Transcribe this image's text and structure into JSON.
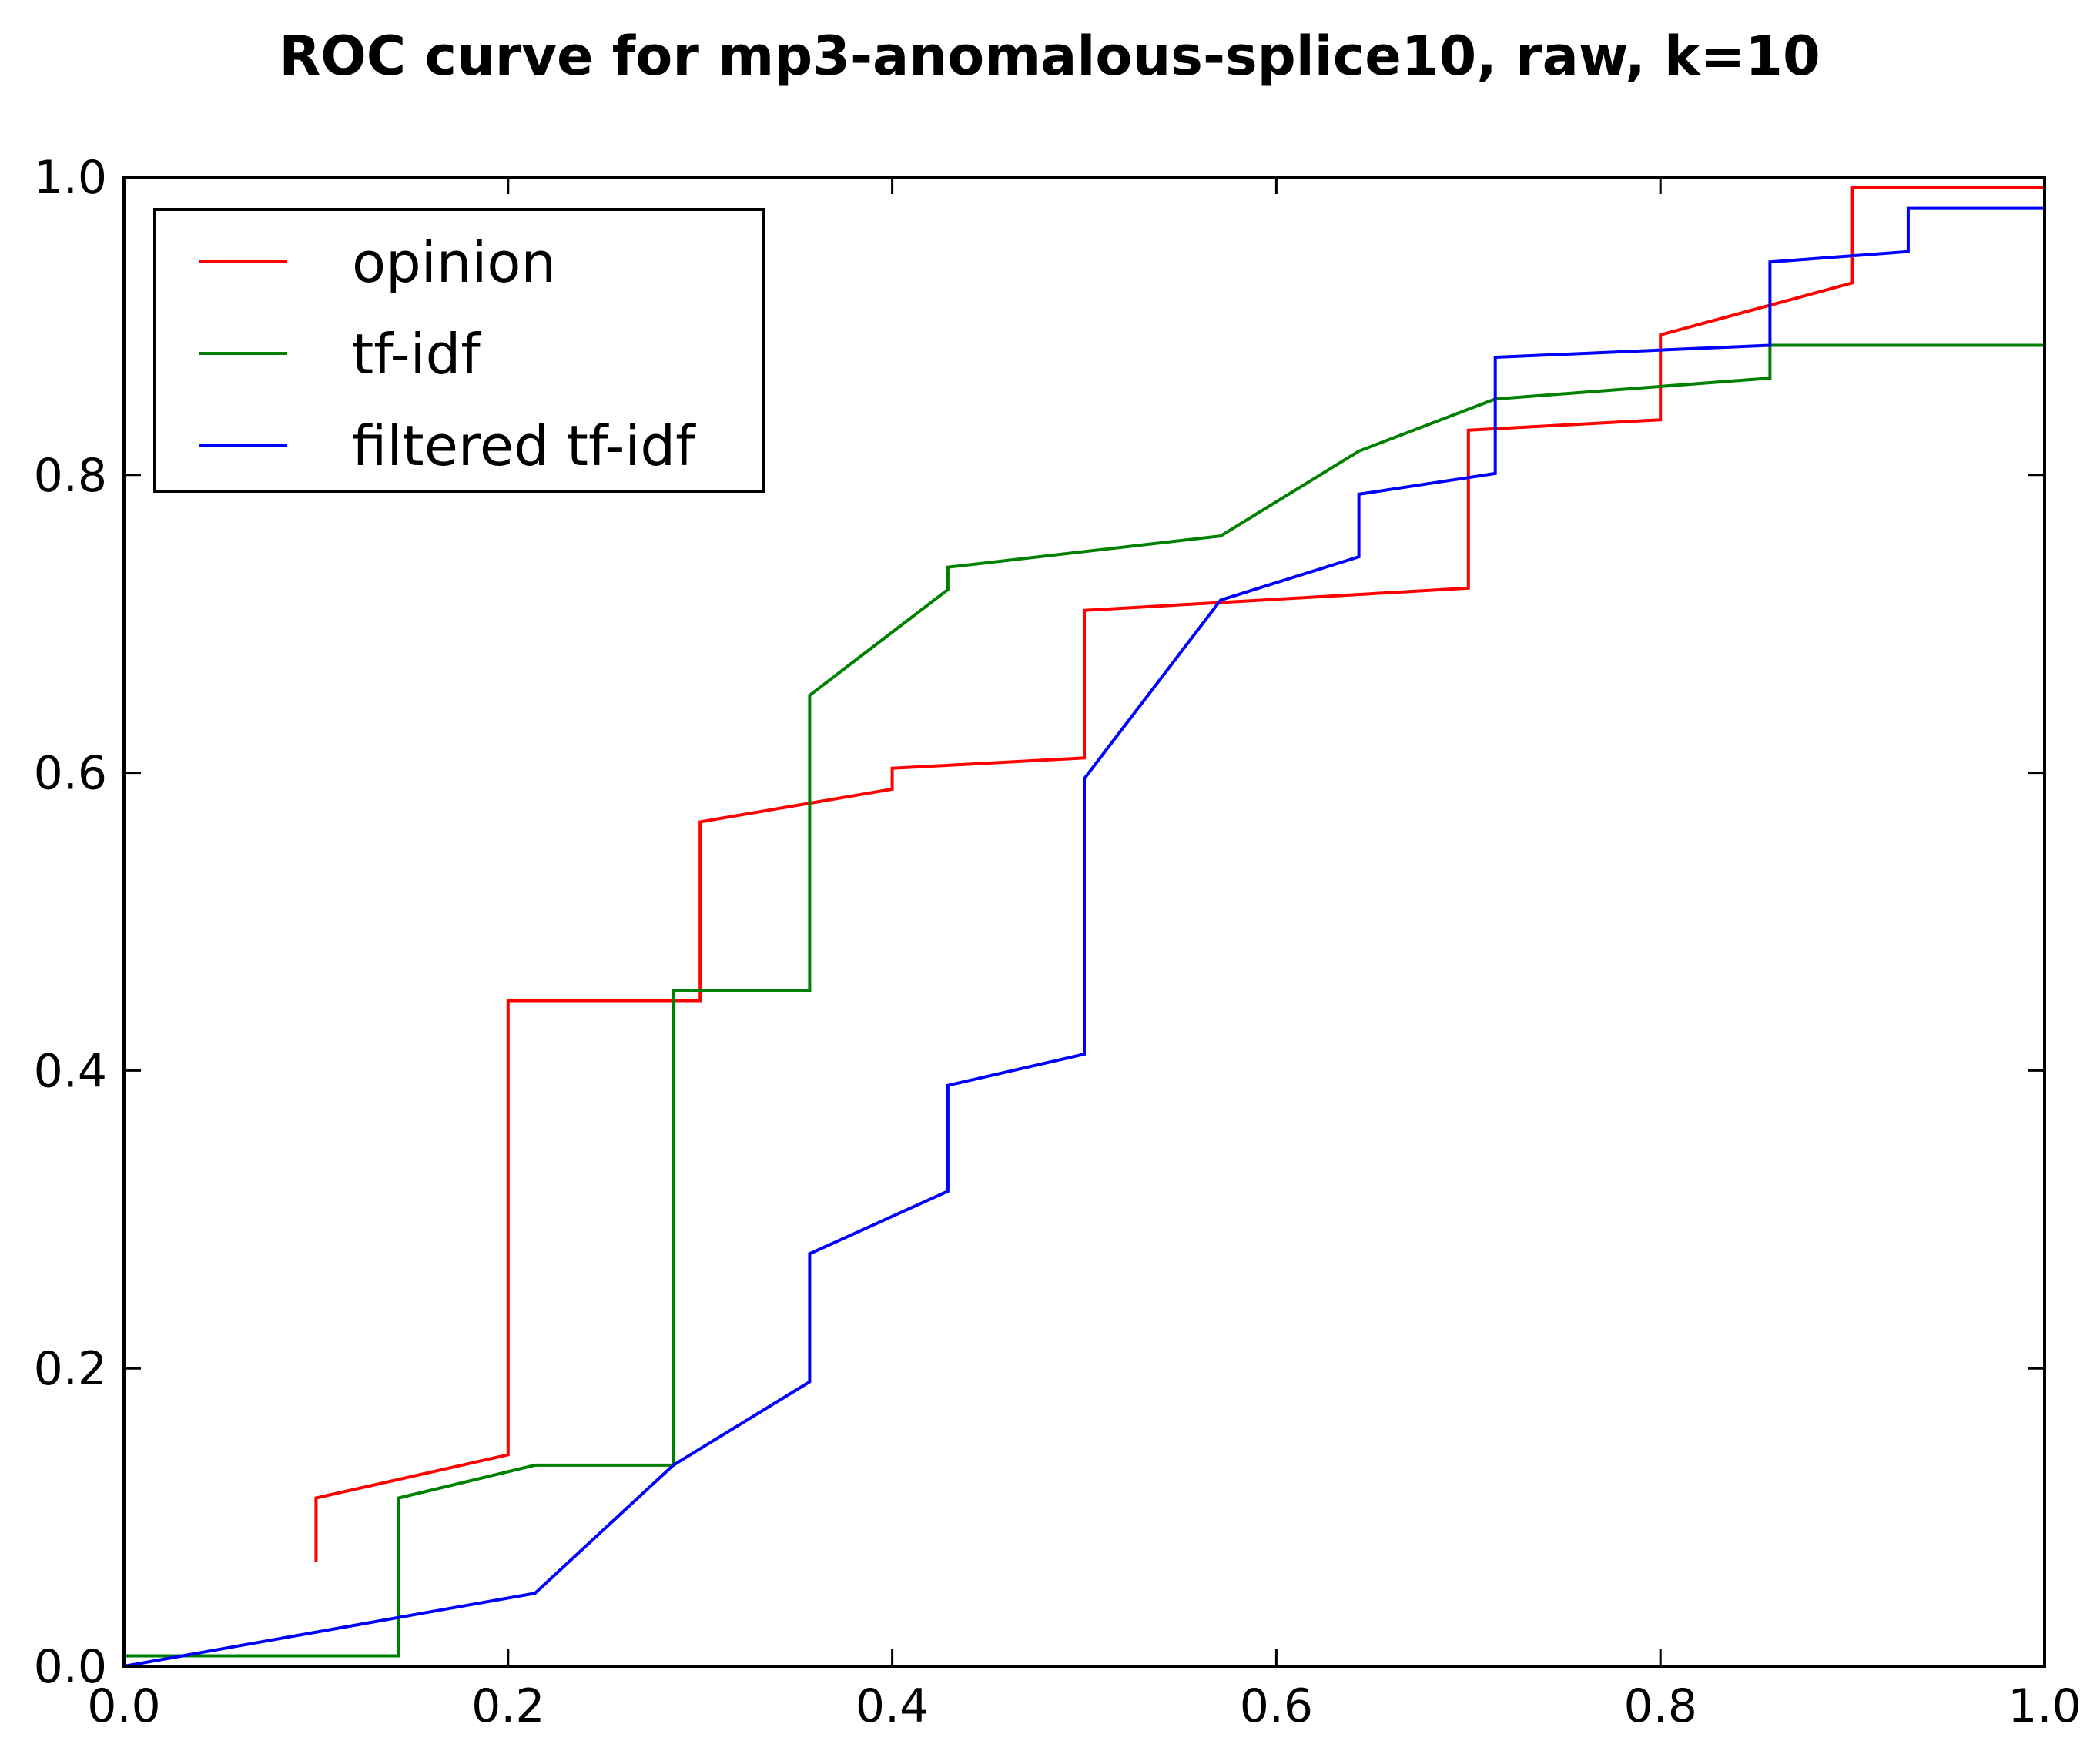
{
  "chart_data": {
    "type": "line",
    "title": "ROC curve for mp3-anomalous-splice10, raw, k=10",
    "xlabel": "",
    "ylabel": "",
    "xlim": [
      0.0,
      1.0
    ],
    "ylim": [
      0.0,
      1.0
    ],
    "grid": false,
    "legend_position": "top-left",
    "xticks": [
      "0.0",
      "0.2",
      "0.4",
      "0.6",
      "0.8",
      "1.0"
    ],
    "yticks": [
      "0.0",
      "0.2",
      "0.4",
      "0.6",
      "0.8",
      "1.0"
    ],
    "xtick_values": [
      0.0,
      0.2,
      0.4,
      0.6,
      0.8,
      1.0
    ],
    "ytick_values": [
      0.0,
      0.2,
      0.4,
      0.6,
      0.8,
      1.0
    ],
    "series": [
      {
        "name": "opinion",
        "color": "#ff0000",
        "x": [
          0.1,
          0.1,
          0.2,
          0.2,
          0.3,
          0.3,
          0.4,
          0.4,
          0.5,
          0.5,
          0.7,
          0.7,
          0.8,
          0.8,
          0.9,
          0.9,
          1.0
        ],
        "y": [
          0.07,
          0.113,
          0.142,
          0.447,
          0.447,
          0.567,
          0.589,
          0.603,
          0.61,
          0.709,
          0.724,
          0.83,
          0.837,
          0.894,
          0.929,
          0.993,
          0.993
        ]
      },
      {
        "name": "tf-idf",
        "color": "#008000",
        "x": [
          0.0,
          0.143,
          0.143,
          0.214,
          0.286,
          0.286,
          0.357,
          0.357,
          0.429,
          0.429,
          0.571,
          0.643,
          0.714,
          0.857,
          0.857,
          0.929,
          1.0
        ],
        "y": [
          0.007,
          0.007,
          0.113,
          0.135,
          0.135,
          0.454,
          0.454,
          0.652,
          0.723,
          0.738,
          0.759,
          0.816,
          0.851,
          0.865,
          0.887,
          0.887,
          0.887
        ]
      },
      {
        "name": "filtered tf-idf",
        "color": "#0000ff",
        "x": [
          0.0,
          0.214,
          0.286,
          0.357,
          0.357,
          0.429,
          0.429,
          0.5,
          0.5,
          0.571,
          0.643,
          0.643,
          0.714,
          0.714,
          0.857,
          0.857,
          0.929,
          0.929,
          1.0
        ],
        "y": [
          0.0,
          0.049,
          0.135,
          0.191,
          0.277,
          0.319,
          0.39,
          0.411,
          0.596,
          0.716,
          0.745,
          0.787,
          0.801,
          0.879,
          0.887,
          0.943,
          0.95,
          0.979,
          0.979
        ]
      }
    ]
  }
}
